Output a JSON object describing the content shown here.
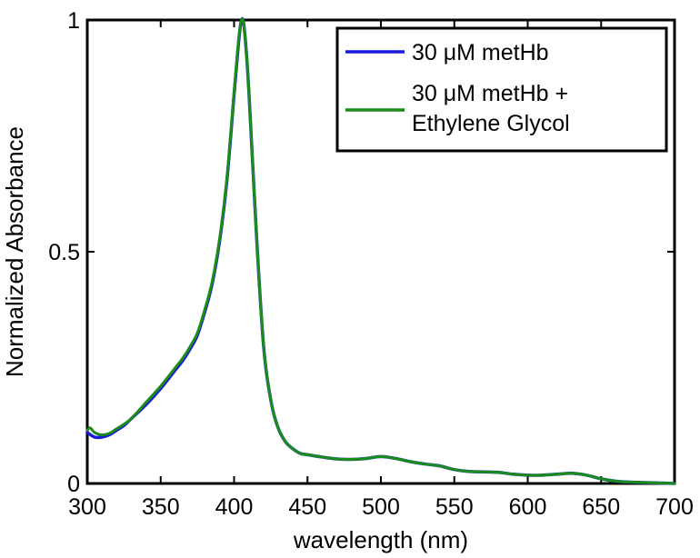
{
  "chart_data": {
    "type": "line",
    "title": "",
    "xlabel": "wavelength (nm)",
    "ylabel": "Normalized Absorbance",
    "xlim": [
      300,
      700
    ],
    "ylim": [
      0,
      1
    ],
    "xticks": [
      300,
      350,
      400,
      450,
      500,
      550,
      600,
      650,
      700
    ],
    "xtick_labels": [
      "300",
      "350",
      "400",
      "450",
      "500",
      "550",
      "600",
      "650",
      "700"
    ],
    "yticks": [
      0,
      0.5,
      1
    ],
    "ytick_labels": [
      "0",
      "0.5",
      "1"
    ],
    "grid": false,
    "legend_position": "top-right",
    "series": [
      {
        "name": "30 μM metHb",
        "color": "#1a1adb",
        "x": [
          300,
          305,
          310,
          315,
          320,
          325,
          330,
          340,
          350,
          360,
          365,
          370,
          375,
          380,
          385,
          390,
          395,
          400,
          403,
          405,
          407,
          410,
          415,
          420,
          425,
          430,
          435,
          440,
          445,
          450,
          460,
          470,
          480,
          490,
          500,
          510,
          520,
          530,
          540,
          550,
          560,
          570,
          580,
          590,
          600,
          610,
          620,
          630,
          640,
          650,
          660,
          670,
          680,
          690,
          700
        ],
        "y": [
          0.11,
          0.1,
          0.1,
          0.105,
          0.115,
          0.125,
          0.14,
          0.17,
          0.205,
          0.245,
          0.265,
          0.29,
          0.32,
          0.37,
          0.43,
          0.52,
          0.65,
          0.84,
          0.95,
          1.0,
          0.98,
          0.85,
          0.55,
          0.3,
          0.18,
          0.12,
          0.09,
          0.075,
          0.065,
          0.062,
          0.057,
          0.053,
          0.052,
          0.054,
          0.058,
          0.054,
          0.047,
          0.042,
          0.038,
          0.03,
          0.026,
          0.025,
          0.024,
          0.02,
          0.018,
          0.018,
          0.02,
          0.022,
          0.018,
          0.01,
          0.005,
          0.003,
          0.002,
          0.001,
          0.0
        ]
      },
      {
        "name": "30 μM metHb + Ethylene Glycol",
        "color": "#1a8c1a",
        "x": [
          300,
          302,
          305,
          310,
          315,
          320,
          325,
          330,
          340,
          350,
          360,
          365,
          370,
          375,
          380,
          385,
          390,
          395,
          400,
          403,
          405,
          407,
          410,
          415,
          420,
          425,
          430,
          435,
          440,
          445,
          450,
          460,
          470,
          480,
          490,
          500,
          510,
          520,
          530,
          540,
          550,
          560,
          570,
          580,
          590,
          600,
          610,
          620,
          630,
          640,
          650,
          660,
          670,
          680,
          690,
          700
        ],
        "y": [
          0.115,
          0.12,
          0.11,
          0.105,
          0.108,
          0.118,
          0.128,
          0.14,
          0.175,
          0.21,
          0.25,
          0.27,
          0.295,
          0.325,
          0.375,
          0.435,
          0.525,
          0.655,
          0.845,
          0.955,
          1.0,
          0.98,
          0.85,
          0.55,
          0.3,
          0.18,
          0.12,
          0.09,
          0.075,
          0.065,
          0.062,
          0.057,
          0.053,
          0.052,
          0.054,
          0.058,
          0.054,
          0.047,
          0.042,
          0.038,
          0.03,
          0.026,
          0.025,
          0.024,
          0.02,
          0.018,
          0.018,
          0.02,
          0.022,
          0.018,
          0.01,
          0.005,
          0.003,
          0.002,
          0.001,
          0.0
        ]
      }
    ]
  }
}
